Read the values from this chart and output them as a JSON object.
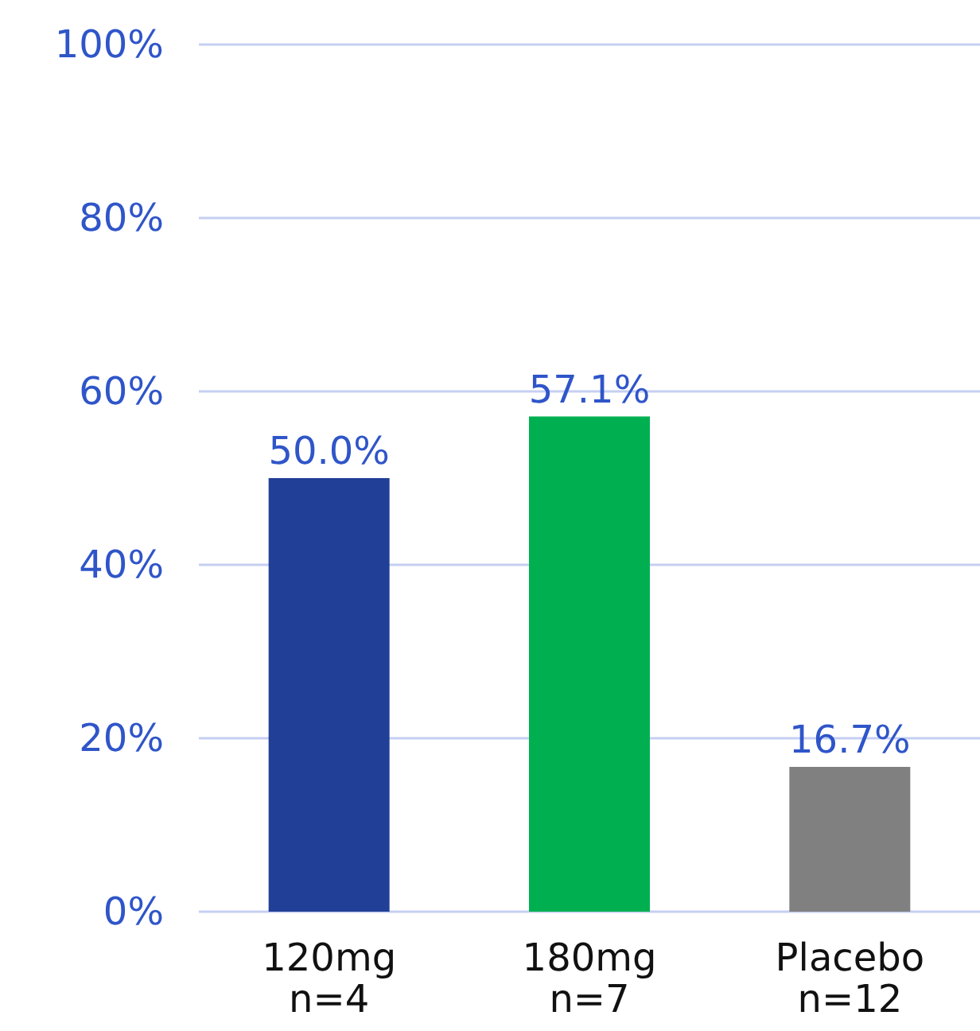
{
  "chart_data": {
    "type": "bar",
    "categories": [
      "120mg\nn=4",
      "180mg\nn=7",
      "Placebo\nn=12"
    ],
    "values": [
      50.0,
      57.1,
      16.7
    ],
    "colors": [
      "#213f96",
      "#00b050",
      "#808080"
    ],
    "value_labels": [
      "50.0%",
      "57.1%",
      "16.7%"
    ],
    "ylim": [
      0,
      100
    ],
    "yticks": [
      {
        "value": 0,
        "label": "0%"
      },
      {
        "value": 20,
        "label": "20%"
      },
      {
        "value": 40,
        "label": "40%"
      },
      {
        "value": 60,
        "label": "60%"
      },
      {
        "value": 80,
        "label": "80%"
      },
      {
        "value": 100,
        "label": "100%"
      }
    ],
    "grid": "y"
  }
}
